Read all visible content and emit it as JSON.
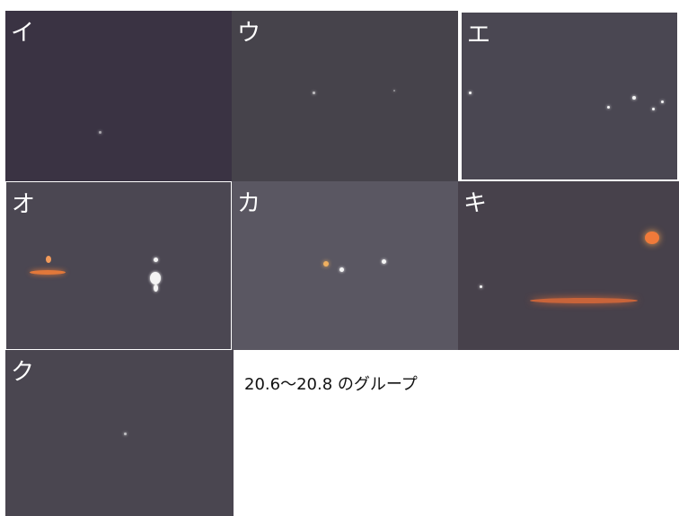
{
  "panels": [
    {
      "label": "イ"
    },
    {
      "label": "ウ"
    },
    {
      "label": "エ"
    },
    {
      "label": "オ"
    },
    {
      "label": "カ"
    },
    {
      "label": "キ"
    },
    {
      "label": "ク"
    }
  ],
  "caption": "20.6～20.8 のグループ"
}
